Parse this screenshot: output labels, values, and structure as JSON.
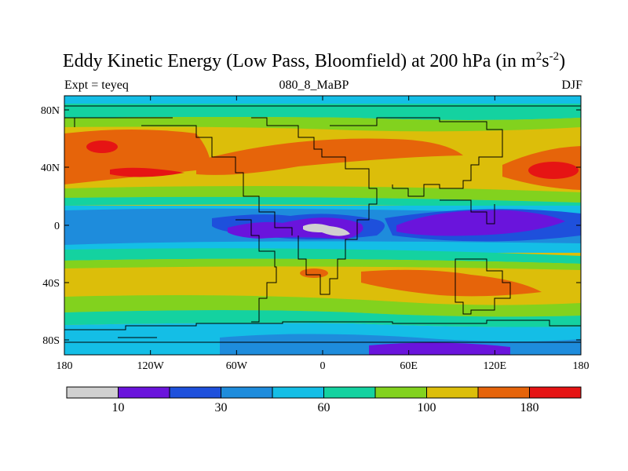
{
  "title": {
    "prefix": "Eddy Kinetic Energy (Low Pass, Bloomfield) at 200 hPa (in m",
    "sup1": "2",
    "mid": "s",
    "sup2": "-2",
    "suffix": ")"
  },
  "subtitle_left": "Expt = teyeq",
  "subtitle_center": "080_8_MaBP",
  "subtitle_right": "DJF",
  "map": {
    "x_ticks": [
      "180",
      "120W",
      "60W",
      "0",
      "60E",
      "120E",
      "180"
    ],
    "y_ticks": [
      "80N",
      "40N",
      "0",
      "40S",
      "80S"
    ]
  },
  "colorbar": {
    "colors": [
      "#d0d0d0",
      "#6a14dc",
      "#1e50dc",
      "#1e8cdc",
      "#14bee6",
      "#14d2a0",
      "#82d21e",
      "#dcbe0a",
      "#e6640a",
      "#e61414"
    ],
    "labels": [
      "10",
      "30",
      "60",
      "100",
      "180"
    ]
  }
}
